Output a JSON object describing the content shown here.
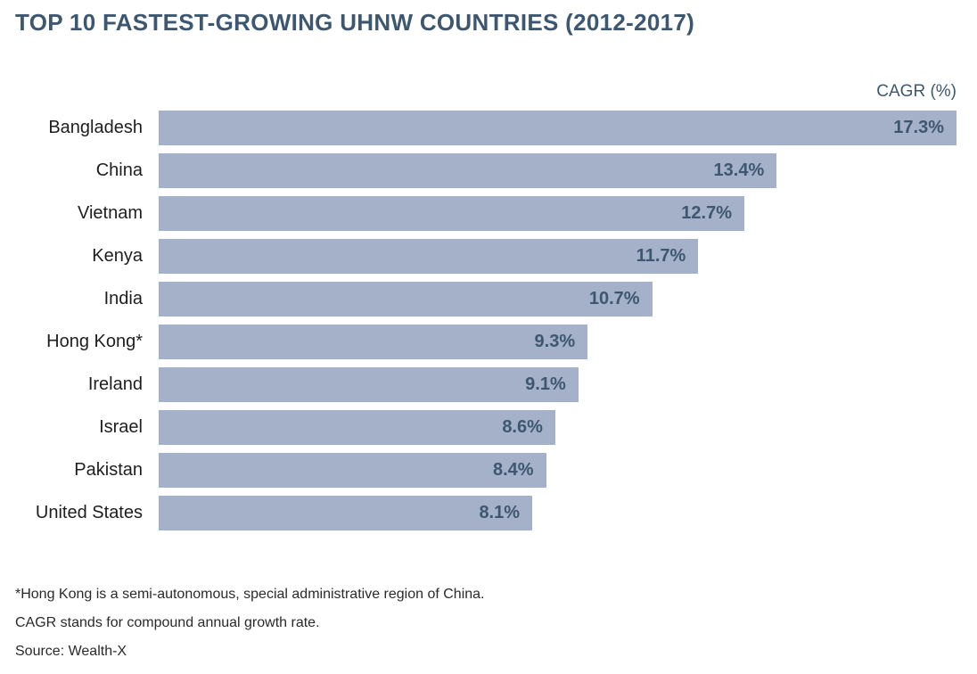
{
  "title": "TOP 10 FASTEST-GROWING UHNW COUNTRIES (2012-2017)",
  "axis_label": "CAGR (%)",
  "colors": {
    "bar_fill": "#A4B1C8",
    "title_text": "#3E5771",
    "value_text": "#3E5771",
    "country_text": "#1e1e1e",
    "footnote_text": "#2a2a2a",
    "background": "#ffffff"
  },
  "chart_data": {
    "type": "bar",
    "orientation": "horizontal",
    "title": "TOP 10 FASTEST-GROWING UHNW COUNTRIES (2012-2017)",
    "xlabel": "CAGR (%)",
    "ylabel": "",
    "xlim": [
      0,
      17.3
    ],
    "grid": false,
    "legend": false,
    "categories": [
      "Bangladesh",
      "China",
      "Vietnam",
      "Kenya",
      "India",
      "Hong Kong*",
      "Ireland",
      "Israel",
      "Pakistan",
      "United States"
    ],
    "values": [
      17.3,
      13.4,
      12.7,
      11.7,
      10.7,
      9.3,
      9.1,
      8.6,
      8.4,
      8.1
    ],
    "value_labels": [
      "17.3%",
      "13.4%",
      "12.7%",
      "11.7%",
      "10.7%",
      "9.3%",
      "9.1%",
      "8.6%",
      "8.4%",
      "8.1%"
    ]
  },
  "footnotes": {
    "hong_kong": "*Hong Kong is a semi-autonomous, special administrative region of China.",
    "cagr": "CAGR stands for compound annual growth rate.",
    "source": "Source: Wealth-X"
  }
}
